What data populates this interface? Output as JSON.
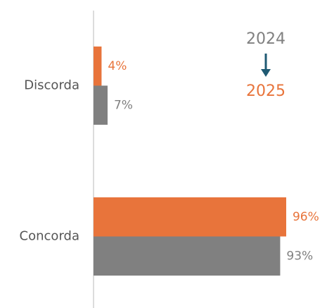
{
  "chart_data": {
    "type": "hbar",
    "categories": [
      "Discorda",
      "Concorda"
    ],
    "series": [
      {
        "name": "2025",
        "color": "#e8743b",
        "values": [
          4,
          96
        ],
        "value_labels": [
          "4%",
          "96%"
        ]
      },
      {
        "name": "2024",
        "color": "#808080",
        "values": [
          7,
          93
        ],
        "value_labels": [
          "7%",
          "93%"
        ]
      }
    ],
    "xlim": [
      0,
      100
    ]
  }
}
